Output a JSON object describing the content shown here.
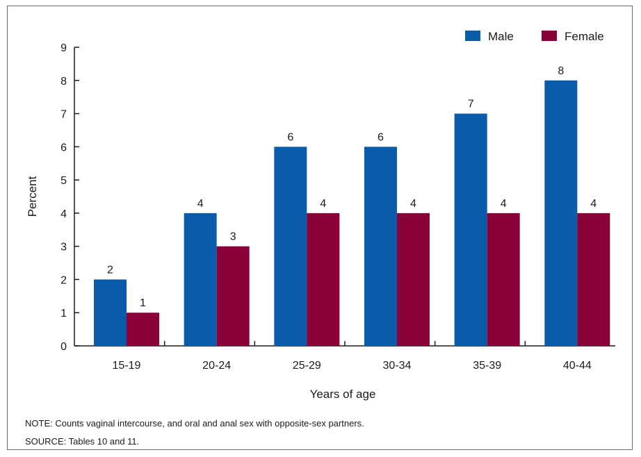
{
  "chart_data": {
    "type": "bar",
    "categories": [
      "15-19",
      "20-24",
      "25-29",
      "30-34",
      "35-39",
      "40-44"
    ],
    "series": [
      {
        "name": "Male",
        "values": [
          2,
          4,
          6,
          6,
          7,
          8
        ],
        "color": "#0a5cab"
      },
      {
        "name": "Female",
        "values": [
          1,
          3,
          4,
          4,
          4,
          4
        ],
        "color": "#8a0038"
      }
    ],
    "title": "",
    "xlabel": "Years of age",
    "ylabel": "Percent",
    "ylim": [
      0,
      9
    ],
    "yticks": [
      0,
      1,
      2,
      3,
      4,
      5,
      6,
      7,
      8,
      9
    ],
    "grid": false,
    "legend_position": "top-right",
    "data_labels": true
  },
  "notes": {
    "note": "NOTE: Counts vaginal intercourse, and oral and anal sex with opposite-sex partners.",
    "source": "SOURCE: Tables 10 and 11."
  }
}
